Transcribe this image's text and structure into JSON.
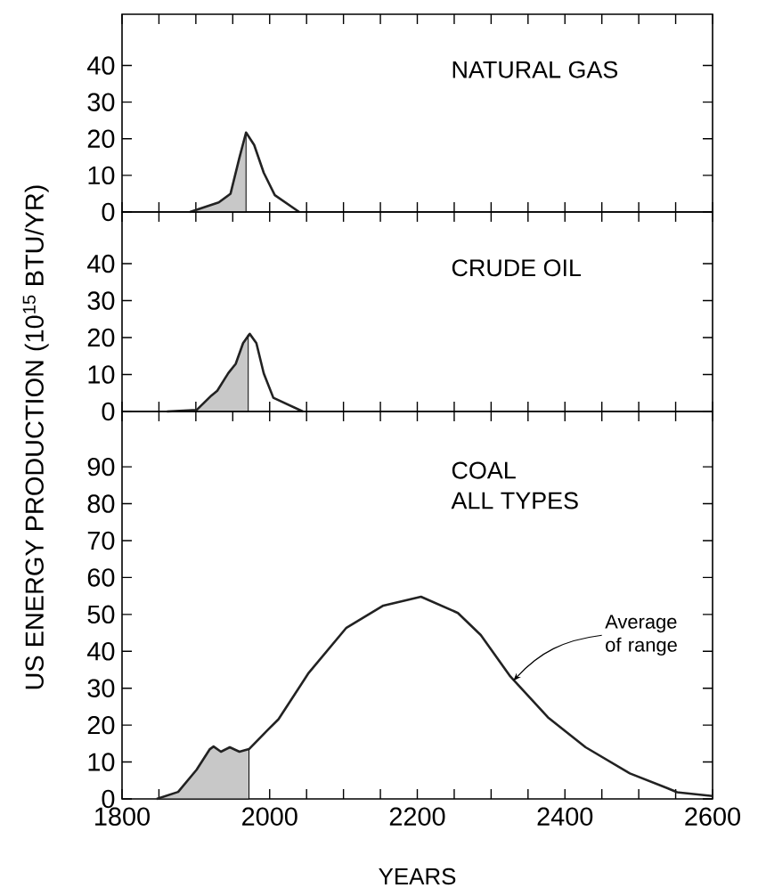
{
  "chart_data": [
    {
      "type": "line",
      "title": "NATURAL GAS",
      "xlim": [
        1800,
        2600
      ],
      "ylim": [
        0,
        54
      ],
      "tick_labels": "y",
      "xticks": [
        1800,
        {
          "value": 1850,
          "label": null
        },
        {
          "value": 1900,
          "label": null
        },
        {
          "value": 1950,
          "label": null
        },
        2000,
        {
          "value": 2050,
          "label": null
        },
        {
          "value": 2100,
          "label": null
        },
        {
          "value": 2150,
          "label": null
        },
        2200,
        {
          "value": 2250,
          "label": null
        },
        {
          "value": 2300,
          "label": null
        },
        {
          "value": 2350,
          "label": null
        },
        2400,
        {
          "value": 2450,
          "label": null
        },
        {
          "value": 2500,
          "label": null
        },
        {
          "value": 2550,
          "label": null
        },
        2600
      ],
      "yticks": [
        0,
        10,
        20,
        30,
        40
      ],
      "series": [
        {
          "type": "area",
          "color": "#c8c8c8",
          "x": [
            1892,
            1931,
            1947,
            1959,
            1968
          ],
          "values": [
            0,
            2.6,
            5,
            14.8,
            21.7
          ]
        },
        {
          "color": "#222222",
          "x": [
            1892,
            1931,
            1947,
            1959,
            1968,
            1979,
            1992,
            2007,
            2040
          ],
          "values": [
            0,
            2.6,
            5,
            14.8,
            21.7,
            18.3,
            10.7,
            4.6,
            0
          ]
        }
      ]
    },
    {
      "type": "line",
      "title": "CRUDE OIL",
      "ylabel": "US ENERGY PRODUCTION (10$^{15}$ BTU/YR)",
      "xlim": [
        1800,
        2600
      ],
      "ylim": [
        0,
        54
      ],
      "tick_labels": "y",
      "xticks": [
        1800,
        {
          "value": 1850,
          "label": null
        },
        {
          "value": 1900,
          "label": null
        },
        {
          "value": 1950,
          "label": null
        },
        2000,
        {
          "value": 2050,
          "label": null
        },
        {
          "value": 2100,
          "label": null
        },
        {
          "value": 2150,
          "label": null
        },
        2200,
        {
          "value": 2250,
          "label": null
        },
        {
          "value": 2300,
          "label": null
        },
        {
          "value": 2350,
          "label": null
        },
        2400,
        {
          "value": 2450,
          "label": null
        },
        {
          "value": 2500,
          "label": null
        },
        {
          "value": 2550,
          "label": null
        },
        2600
      ],
      "yticks": [
        0,
        10,
        20,
        30,
        40
      ],
      "series": [
        {
          "type": "area",
          "color": "#c8c8c8",
          "x": [
            1861,
            1901,
            1921,
            1929,
            1944,
            1954,
            1964,
            1971
          ],
          "values": [
            0,
            0.4,
            4.3,
            5.6,
            10.4,
            12.9,
            18.5,
            20.8
          ]
        },
        {
          "color": "#222222",
          "x": [
            1861,
            1901,
            1921,
            1929,
            1944,
            1954,
            1964,
            1973,
            1982,
            1992,
            2005,
            2045
          ],
          "values": [
            0,
            0.4,
            4.3,
            5.6,
            10.4,
            12.9,
            18.5,
            21,
            18.5,
            10.3,
            3.7,
            0
          ]
        }
      ]
    },
    {
      "type": "line",
      "title": "COAL",
      "subtitle": "ALL TYPES",
      "xlabel": "YEARS",
      "xlim": [
        1800,
        2600
      ],
      "ylim": [
        0,
        105
      ],
      "xticks": [
        1800,
        {
          "value": 1850,
          "label": null
        },
        {
          "value": 1900,
          "label": null
        },
        {
          "value": 1950,
          "label": null
        },
        2000,
        {
          "value": 2050,
          "label": null
        },
        {
          "value": 2100,
          "label": null
        },
        {
          "value": 2150,
          "label": null
        },
        2200,
        {
          "value": 2250,
          "label": null
        },
        {
          "value": 2300,
          "label": null
        },
        {
          "value": 2350,
          "label": null
        },
        2400,
        {
          "value": 2450,
          "label": null
        },
        {
          "value": 2500,
          "label": null
        },
        {
          "value": 2550,
          "label": null
        },
        2600
      ],
      "yticks": [
        0,
        10,
        20,
        30,
        40,
        50,
        60,
        70,
        80,
        90
      ],
      "annotations": [
        {
          "text": "Average of range",
          "x": 2330,
          "y": 32
        }
      ],
      "series": [
        {
          "type": "area",
          "color": "#c8c8c8",
          "x": [
            1847,
            1876,
            1901,
            1919,
            1924,
            1934,
            1946,
            1959,
            1972
          ],
          "values": [
            0,
            1.9,
            7.9,
            13.5,
            14.2,
            12.8,
            14,
            12.8,
            13.5
          ]
        },
        {
          "color": "#222222",
          "x": [
            1847,
            1876,
            1901,
            1919,
            1924,
            1934,
            1946,
            1959,
            1972,
            1997,
            2012,
            2053,
            2104,
            2154,
            2205,
            2255,
            2286,
            2326,
            2377,
            2428,
            2488,
            2539,
            2552,
            2600
          ],
          "values": [
            0,
            1.9,
            7.9,
            13.5,
            14.2,
            12.8,
            14,
            12.8,
            13.5,
            18.6,
            21.6,
            34.2,
            46.4,
            52.4,
            54.8,
            50.4,
            44.4,
            33.2,
            22.1,
            14,
            6.9,
            2.9,
            1.8,
            0.8
          ]
        }
      ]
    }
  ]
}
